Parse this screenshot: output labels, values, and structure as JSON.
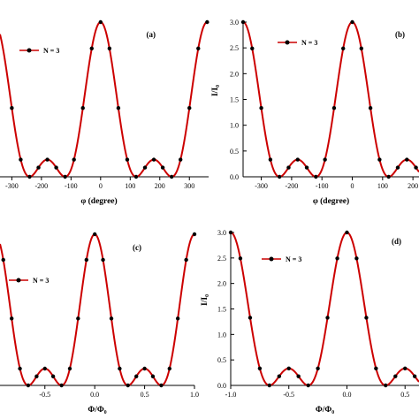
{
  "colors": {
    "curve": "#cc0000",
    "marker": "#000000",
    "axis": "#000000"
  },
  "chart_data": [
    {
      "panel": "(a)",
      "type": "line",
      "xlabel": "φ (degree)",
      "ylabel": "",
      "xlim": [
        -340,
        365
      ],
      "ylim": [
        0,
        3.0
      ],
      "xticks": [
        -300,
        -200,
        -100,
        0,
        100,
        200,
        300
      ],
      "xtick_labels": [
        "-300",
        "-200",
        "-100",
        "0",
        "100",
        "200",
        "300"
      ],
      "yticks": [],
      "ytick_labels": [],
      "legend": "top-left",
      "series": [
        {
          "name": "N = 3",
          "function": "sin^2(N*x/2)/sin^2(x/2), x in degrees",
          "x_range": [
            -340,
            365
          ],
          "markers_x": [
            -300,
            -270,
            -240,
            -210,
            -180,
            -150,
            -120,
            -90,
            -60,
            -30,
            0,
            30,
            60,
            90,
            120,
            150,
            180,
            210,
            240,
            270,
            300,
            330,
            360
          ]
        }
      ]
    },
    {
      "panel": "(b)",
      "type": "line",
      "xlabel": "φ (degree)",
      "ylabel": "I/I₀",
      "xlim": [
        -360,
        220
      ],
      "ylim": [
        0,
        3.0
      ],
      "xticks": [
        -300,
        -200,
        -100,
        0,
        100,
        200
      ],
      "xtick_labels": [
        "-300",
        "-200",
        "-100",
        "0",
        "100",
        "200"
      ],
      "yticks": [
        0,
        0.5,
        1.0,
        1.5,
        2.0,
        2.5,
        3.0
      ],
      "ytick_labels": [
        "0.0",
        "0.5",
        "1.0",
        "1.5",
        "2.0",
        "2.5",
        "3.0"
      ],
      "legend": "top-left",
      "series": [
        {
          "name": "N = 3",
          "function": "sin^2(N*x/2)/sin^2(x/2), x in degrees",
          "x_range": [
            -360,
            220
          ],
          "markers_x": [
            -360,
            -330,
            -300,
            -270,
            -240,
            -210,
            -180,
            -150,
            -120,
            -90,
            -60,
            -30,
            0,
            30,
            60,
            90,
            120,
            150,
            180,
            210
          ]
        }
      ]
    },
    {
      "panel": "(c)",
      "type": "line",
      "xlabel": "Φ/Φ₀",
      "ylabel": "",
      "xlim": [
        -0.95,
        1.0
      ],
      "ylim": [
        0,
        3.0
      ],
      "xticks": [
        -0.5,
        0.0,
        0.5,
        1.0
      ],
      "xtick_labels": [
        "-0.5",
        "0.0",
        "0.5",
        "1.0"
      ],
      "yticks": [],
      "ytick_labels": [],
      "legend": "top-left",
      "series": [
        {
          "name": "N = 3",
          "function": "sin^2(N*pi*x)/sin^2(pi*x)",
          "x_range": [
            -0.95,
            1.0
          ],
          "markers_x": [
            -0.917,
            -0.833,
            -0.75,
            -0.667,
            -0.583,
            -0.5,
            -0.417,
            -0.333,
            -0.25,
            -0.167,
            -0.083,
            0.0,
            0.083,
            0.167,
            0.25,
            0.333,
            0.417,
            0.5,
            0.583,
            0.667,
            0.75,
            0.833,
            0.917,
            1.0
          ]
        }
      ]
    },
    {
      "panel": "(d)",
      "type": "line",
      "xlabel": "Φ/Φ₀",
      "ylabel": "I/I₀",
      "xlim": [
        -1.0,
        0.62
      ],
      "ylim": [
        0,
        3.0
      ],
      "xticks": [
        -1.0,
        -0.5,
        0.0,
        0.5
      ],
      "xtick_labels": [
        "-1.0",
        "-0.5",
        "0.0",
        "0.5"
      ],
      "yticks": [
        0,
        0.5,
        1.0,
        1.5,
        2.0,
        2.5,
        3.0
      ],
      "ytick_labels": [
        "0.0",
        "0.5",
        "1.0",
        "1.5",
        "2.0",
        "2.5",
        "3.0"
      ],
      "legend": "top-left",
      "series": [
        {
          "name": "N = 3",
          "function": "sin^2(N*pi*x)/sin^2(pi*x)",
          "x_range": [
            -1.0,
            0.62
          ],
          "markers_x": [
            -1.0,
            -0.917,
            -0.833,
            -0.75,
            -0.667,
            -0.583,
            -0.5,
            -0.417,
            -0.333,
            -0.25,
            -0.167,
            -0.083,
            0.0,
            0.083,
            0.167,
            0.25,
            0.333,
            0.417,
            0.5,
            0.583
          ]
        }
      ]
    }
  ]
}
